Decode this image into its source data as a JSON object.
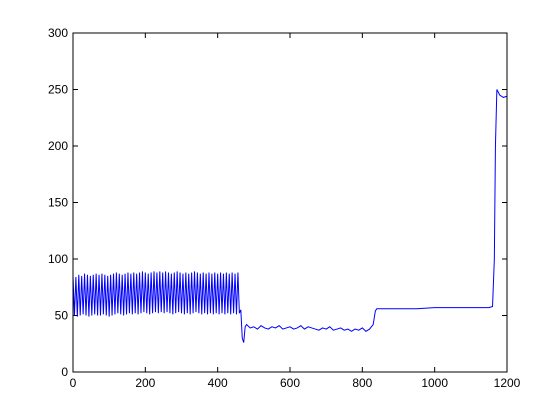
{
  "chart_data": {
    "type": "line",
    "x": [
      0,
      4,
      8,
      12,
      16,
      20,
      24,
      28,
      32,
      36,
      40,
      44,
      48,
      52,
      56,
      60,
      64,
      68,
      72,
      76,
      80,
      84,
      88,
      92,
      96,
      100,
      104,
      108,
      112,
      116,
      120,
      124,
      128,
      132,
      136,
      140,
      144,
      148,
      152,
      156,
      160,
      164,
      168,
      172,
      176,
      180,
      184,
      188,
      192,
      196,
      200,
      204,
      208,
      212,
      216,
      220,
      224,
      228,
      232,
      236,
      240,
      244,
      248,
      252,
      256,
      260,
      264,
      268,
      272,
      276,
      280,
      284,
      288,
      292,
      296,
      300,
      304,
      308,
      312,
      316,
      320,
      324,
      328,
      332,
      336,
      340,
      344,
      348,
      352,
      356,
      360,
      364,
      368,
      372,
      376,
      380,
      384,
      388,
      392,
      396,
      400,
      404,
      408,
      412,
      416,
      420,
      424,
      428,
      432,
      436,
      440,
      444,
      448,
      452,
      456,
      460,
      464,
      468,
      472,
      476,
      480,
      490,
      500,
      510,
      520,
      530,
      540,
      550,
      560,
      570,
      580,
      590,
      600,
      610,
      620,
      630,
      640,
      650,
      660,
      670,
      680,
      690,
      700,
      710,
      720,
      730,
      740,
      750,
      760,
      770,
      780,
      790,
      800,
      810,
      820,
      830,
      836,
      840,
      900,
      950,
      1000,
      1050,
      1100,
      1150,
      1160,
      1165,
      1168,
      1172,
      1180,
      1190,
      1200
    ],
    "series": [
      {
        "color": "#0000ff",
        "values": [
          85,
          50,
          84,
          49,
          86,
          50,
          85,
          51,
          87,
          50,
          86,
          49,
          85,
          50,
          86,
          51,
          87,
          50,
          86,
          50,
          87,
          51,
          86,
          50,
          85,
          49,
          86,
          50,
          87,
          51,
          88,
          52,
          87,
          51,
          86,
          50,
          87,
          51,
          88,
          52,
          87,
          51,
          88,
          52,
          87,
          51,
          88,
          52,
          89,
          53,
          88,
          52,
          87,
          51,
          88,
          52,
          89,
          53,
          88,
          52,
          89,
          53,
          88,
          52,
          89,
          53,
          88,
          52,
          87,
          51,
          88,
          52,
          89,
          53,
          88,
          52,
          87,
          51,
          88,
          52,
          87,
          51,
          88,
          52,
          89,
          53,
          88,
          52,
          87,
          51,
          88,
          52,
          87,
          51,
          88,
          52,
          87,
          51,
          88,
          52,
          87,
          51,
          88,
          52,
          87,
          51,
          88,
          52,
          87,
          51,
          88,
          52,
          87,
          51,
          88,
          52,
          55,
          30,
          26,
          40,
          42,
          39,
          40,
          38,
          41,
          39,
          38,
          40,
          39,
          41,
          38,
          39,
          40,
          38,
          39,
          41,
          38,
          40,
          39,
          38,
          37,
          39,
          38,
          40,
          37,
          38,
          39,
          37,
          38,
          36,
          38,
          37,
          39,
          36,
          38,
          42,
          54,
          56,
          56,
          56,
          57,
          57,
          57,
          57,
          58,
          100,
          200,
          250,
          245,
          243,
          244
        ]
      }
    ],
    "xlim": [
      0,
      1200
    ],
    "xticks": [
      0,
      200,
      400,
      600,
      800,
      1000,
      1200
    ],
    "ylim": [
      0,
      300
    ],
    "yticks": [
      0,
      50,
      100,
      150,
      200,
      250,
      300
    ]
  }
}
